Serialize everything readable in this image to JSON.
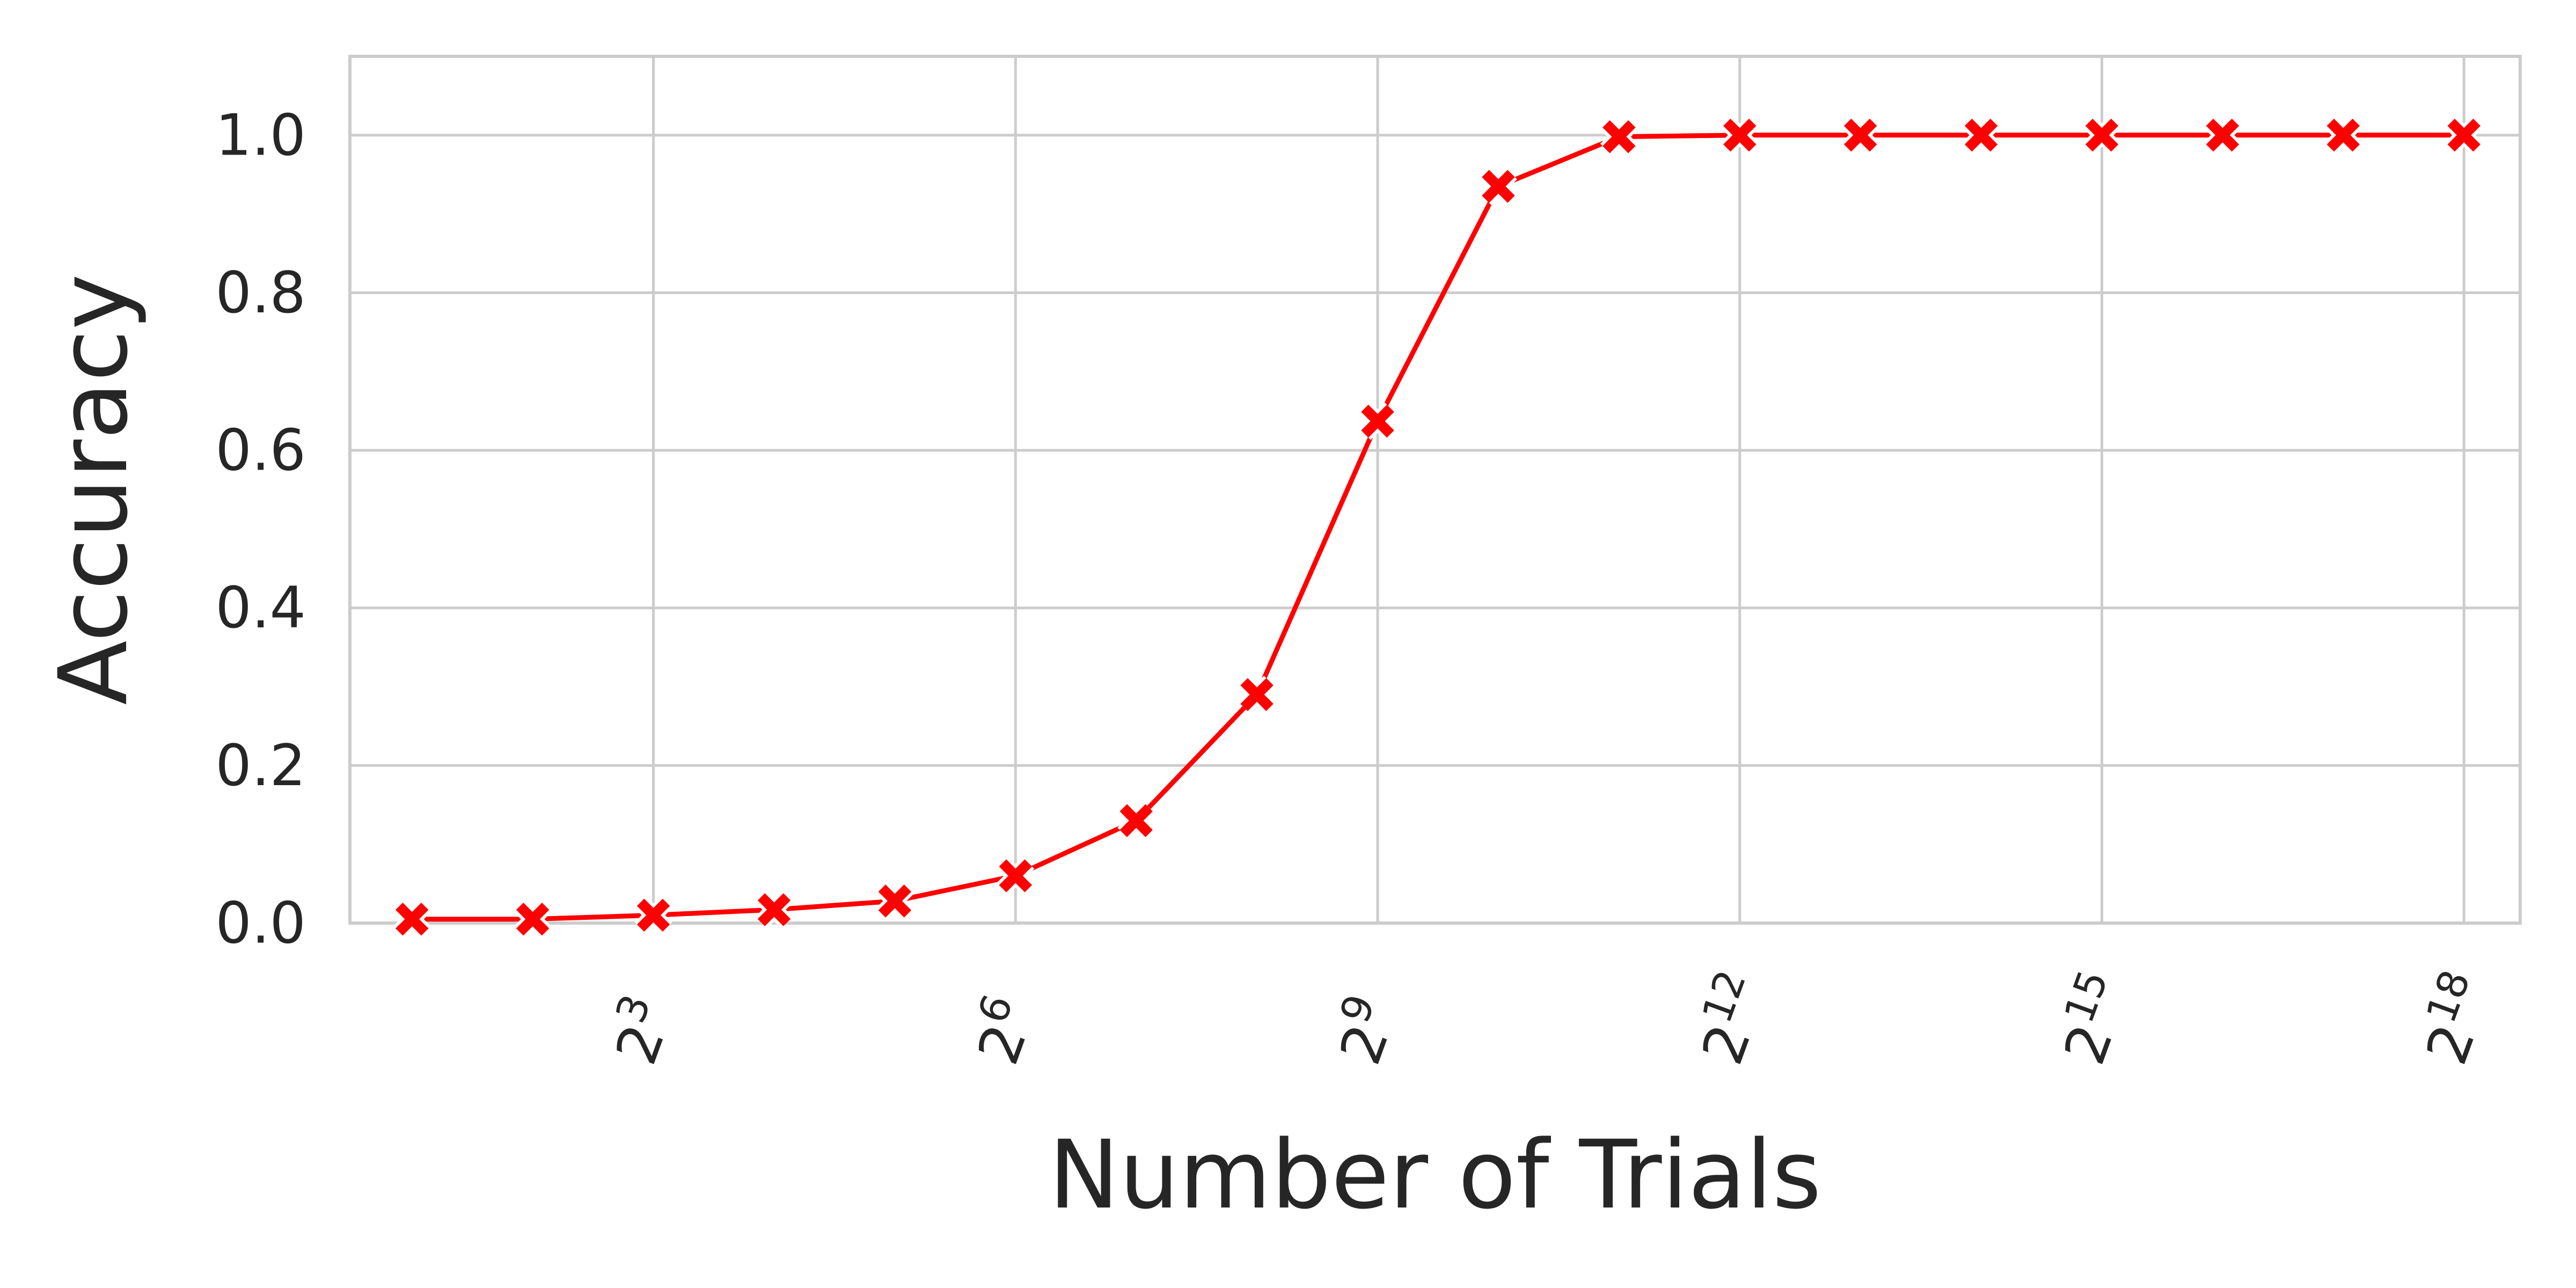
{
  "chart_data": {
    "type": "line",
    "title": "",
    "xlabel": "Number of Trials",
    "ylabel": "Accuracy",
    "x_scale": "log2",
    "x_ticks": [
      {
        "label": "2",
        "exp": "3",
        "value": 8
      },
      {
        "label": "2",
        "exp": "6",
        "value": 64
      },
      {
        "label": "2",
        "exp": "9",
        "value": 512
      },
      {
        "label": "2",
        "exp": "12",
        "value": 4096
      },
      {
        "label": "2",
        "exp": "15",
        "value": 32768
      },
      {
        "label": "2",
        "exp": "18",
        "value": 262144
      }
    ],
    "x_tick_rotation": "about 70 degrees",
    "y_ticks": [
      "0.0",
      "0.2",
      "0.4",
      "0.6",
      "0.8",
      "1.0"
    ],
    "xlim": [
      1.4,
      362000
    ],
    "ylim": [
      0,
      1.1
    ],
    "grid": true,
    "legend": "none",
    "series": [
      {
        "color": "#ff0000",
        "marker": "x",
        "x": [
          2,
          4,
          8,
          16,
          32,
          64,
          128,
          256,
          512,
          1024,
          2048,
          4096,
          8192,
          16384,
          32768,
          65536,
          131072,
          262144
        ],
        "values": [
          0.005,
          0.005,
          0.01,
          0.017,
          0.028,
          0.06,
          0.13,
          0.29,
          0.637,
          0.935,
          0.998,
          1.0,
          1.0,
          1.0,
          1.0,
          1.0,
          1.0,
          1.0
        ]
      }
    ]
  }
}
